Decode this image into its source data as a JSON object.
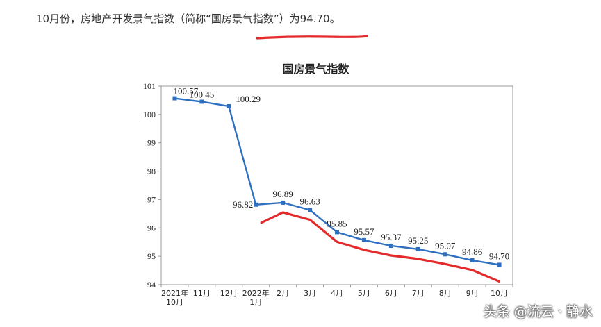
{
  "headline": "10月份，房地产开发景气指数（简称“国房景气指数”）为94.70。",
  "watermark": "头条 @流云 · 静水",
  "colors": {
    "series_line": "#2e6fc0",
    "annotation_underline": "#e42b2b",
    "axis": "#999999",
    "text": "#222222"
  },
  "chart_data": {
    "type": "line",
    "title": "国房景气指数",
    "xlabel": "",
    "ylabel": "",
    "categories": [
      [
        "2021年",
        "10月"
      ],
      [
        "11月"
      ],
      [
        "12月"
      ],
      [
        "2022年",
        "1月"
      ],
      [
        "2月"
      ],
      [
        "3月"
      ],
      [
        "4月"
      ],
      [
        "5月"
      ],
      [
        "6月"
      ],
      [
        "7月"
      ],
      [
        "8月"
      ],
      [
        "9月"
      ],
      [
        "10月"
      ]
    ],
    "series": [
      {
        "values": [
          100.57,
          100.45,
          100.29,
          96.82,
          96.89,
          96.63,
          95.85,
          95.57,
          95.37,
          95.25,
          95.07,
          94.86,
          94.7
        ],
        "labels": [
          "100.57",
          "100.45",
          "100.29",
          "96.82",
          "96.89",
          "96.63",
          "95.85",
          "95.57",
          "95.37",
          "95.25",
          "95.07",
          "94.86",
          "94.70"
        ]
      }
    ],
    "ylim": [
      94,
      101
    ],
    "yticks": [
      "94",
      "95",
      "96",
      "97",
      "98",
      "99",
      "100",
      "101"
    ],
    "grid": false,
    "legend": "none",
    "annotations": [
      {
        "type": "hand-drawn-underline",
        "color": "#e42b2b",
        "note": "red freehand line under the series from 2022-01 to latest month"
      }
    ]
  }
}
